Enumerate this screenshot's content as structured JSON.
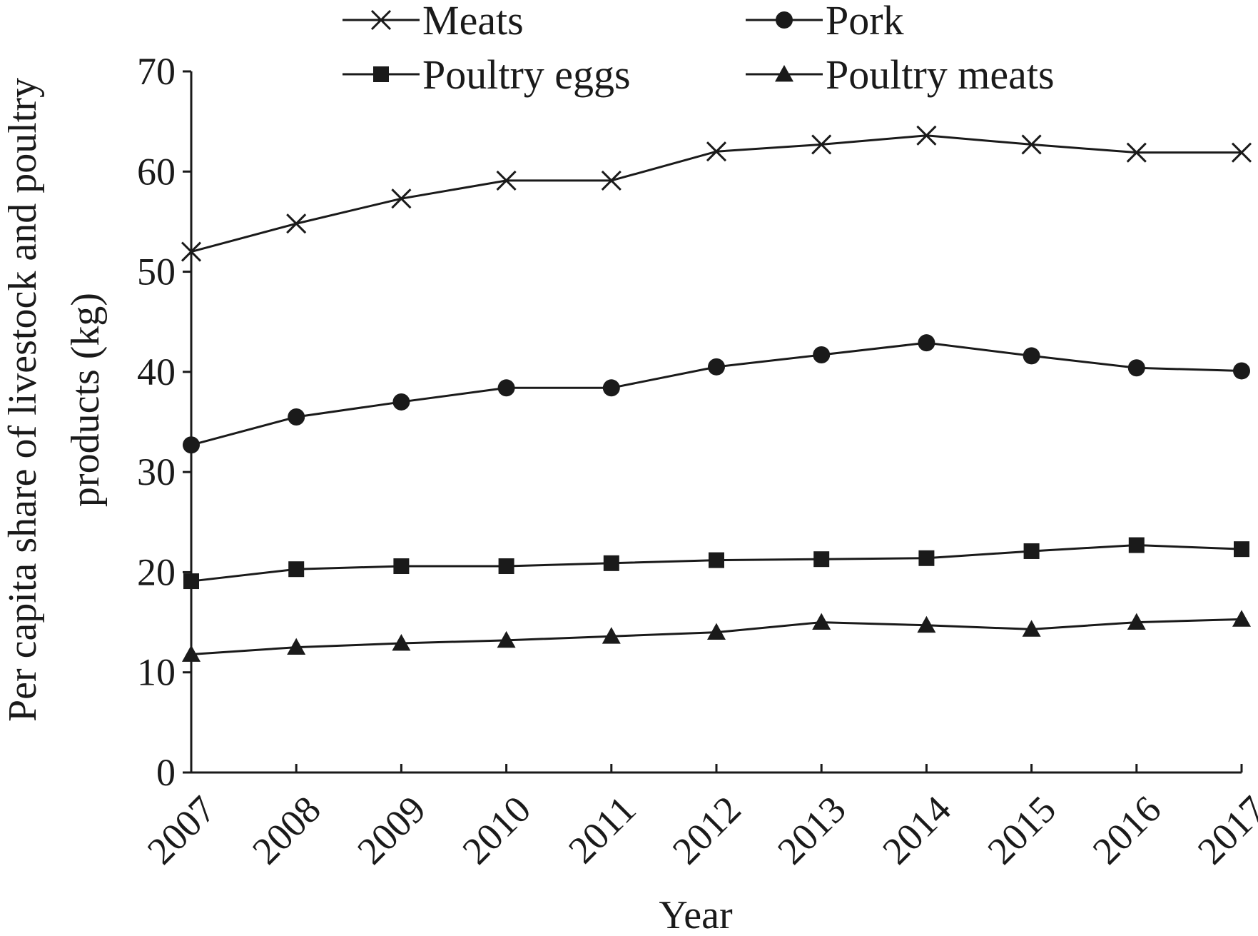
{
  "chart_data": {
    "type": "line",
    "x": [
      "2007",
      "2008",
      "2009",
      "2010",
      "2011",
      "2012",
      "2013",
      "2014",
      "2015",
      "2016",
      "2017"
    ],
    "xlabel": "Year",
    "ylabel_lines": [
      "Per capita share of livestock and poultry",
      "products (kg)"
    ],
    "ylim": [
      0,
      70
    ],
    "yticks": [
      0,
      10,
      20,
      30,
      40,
      50,
      60,
      70
    ],
    "legend_position": "top",
    "series": [
      {
        "name": "Meats",
        "marker": "x",
        "values": [
          52.0,
          54.8,
          57.3,
          59.1,
          59.1,
          62.0,
          62.7,
          63.6,
          62.7,
          61.9,
          61.9
        ]
      },
      {
        "name": "Pork",
        "marker": "circle",
        "values": [
          32.7,
          35.5,
          37.0,
          38.4,
          38.4,
          40.5,
          41.7,
          42.9,
          41.6,
          40.4,
          40.1
        ]
      },
      {
        "name": "Poultry eggs",
        "marker": "square",
        "values": [
          19.1,
          20.3,
          20.6,
          20.6,
          20.9,
          21.2,
          21.3,
          21.4,
          22.1,
          22.7,
          22.3
        ]
      },
      {
        "name": "Poultry meats",
        "marker": "triangle",
        "values": [
          11.8,
          12.5,
          12.9,
          13.2,
          13.6,
          14.0,
          15.0,
          14.7,
          14.3,
          15.0,
          15.3
        ]
      }
    ],
    "colors": {
      "line": "#1a1a1a",
      "background": "#ffffff"
    }
  }
}
